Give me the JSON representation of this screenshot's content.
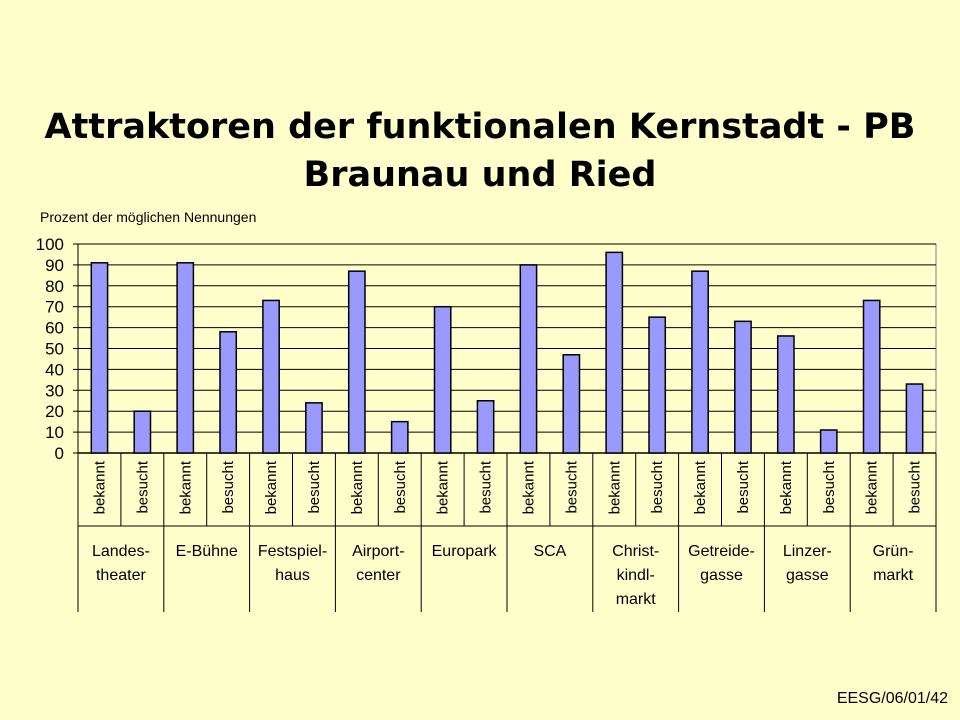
{
  "slide": {
    "title_line1": "Attraktoren der funktionalen Kernstadt - PB",
    "title_line2": "Braunau und Ried",
    "footer": "EESG/06/01/42"
  },
  "chart_data": {
    "type": "bar",
    "title": "",
    "ylabel": "Prozent der möglichen Nennungen",
    "ylim": [
      0,
      100
    ],
    "yticks": [
      0,
      10,
      20,
      30,
      40,
      50,
      60,
      70,
      80,
      90,
      100
    ],
    "grid": true,
    "legend": false,
    "bar_color": "#9999FF",
    "groups": [
      {
        "label_lines": [
          "Landes-",
          "theater"
        ],
        "bars": [
          {
            "label": "bekannt",
            "value": 91
          },
          {
            "label": "besucht",
            "value": 20
          }
        ]
      },
      {
        "label_lines": [
          "E-Bühne"
        ],
        "bars": [
          {
            "label": "bekannt",
            "value": 91
          },
          {
            "label": "besucht",
            "value": 58
          }
        ]
      },
      {
        "label_lines": [
          "Festspiel-",
          "haus"
        ],
        "bars": [
          {
            "label": "bekannt",
            "value": 73
          },
          {
            "label": "besucht",
            "value": 24
          }
        ]
      },
      {
        "label_lines": [
          "Airport-",
          "center"
        ],
        "bars": [
          {
            "label": "bekannt",
            "value": 87
          },
          {
            "label": "besucht",
            "value": 15
          }
        ]
      },
      {
        "label_lines": [
          "Europark"
        ],
        "bars": [
          {
            "label": "bekannt",
            "value": 70
          },
          {
            "label": "besucht",
            "value": 25
          }
        ]
      },
      {
        "label_lines": [
          "SCA"
        ],
        "bars": [
          {
            "label": "bekannt",
            "value": 90
          },
          {
            "label": "besucht",
            "value": 47
          }
        ]
      },
      {
        "label_lines": [
          "Christ-",
          "kindl-",
          "markt"
        ],
        "bars": [
          {
            "label": "bekannt",
            "value": 96
          },
          {
            "label": "besucht",
            "value": 65
          }
        ]
      },
      {
        "label_lines": [
          "Getreide-",
          "gasse"
        ],
        "bars": [
          {
            "label": "bekannt",
            "value": 87
          },
          {
            "label": "besucht",
            "value": 63
          }
        ]
      },
      {
        "label_lines": [
          "Linzer-",
          "gasse"
        ],
        "bars": [
          {
            "label": "bekannt",
            "value": 56
          },
          {
            "label": "besucht",
            "value": 11
          }
        ]
      },
      {
        "label_lines": [
          "Grün-",
          "markt"
        ],
        "bars": [
          {
            "label": "bekannt",
            "value": 73
          },
          {
            "label": "besucht",
            "value": 33
          }
        ]
      }
    ]
  }
}
